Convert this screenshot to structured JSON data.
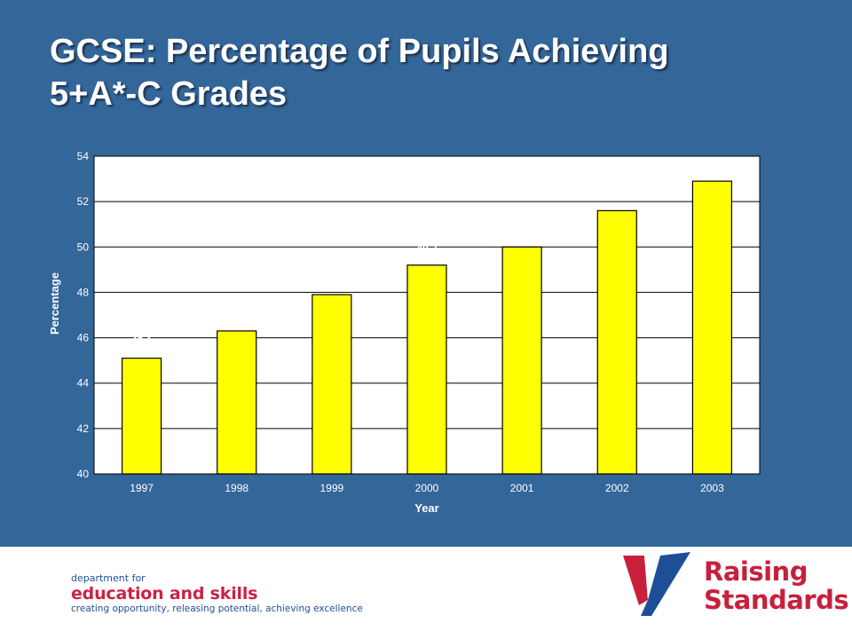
{
  "slide": {
    "title_line1": "GCSE: Percentage of Pupils Achieving",
    "title_line2": "5+A*-C Grades",
    "background_color": "#336699"
  },
  "chart_data": {
    "type": "bar",
    "categories": [
      "1997",
      "1998",
      "1999",
      "2000",
      "2001",
      "2002",
      "2003"
    ],
    "values": [
      45.1,
      46.3,
      47.9,
      49.2,
      50,
      51.6,
      52.9
    ],
    "data_labels": [
      "45.1",
      "46.3",
      "47.9",
      "49.2",
      "50",
      "51.6",
      "52.9"
    ],
    "xlabel": "Year",
    "ylabel": "Percentage",
    "ylim": [
      40,
      54
    ],
    "yticks": [
      40,
      42,
      44,
      46,
      48,
      50,
      52,
      54
    ],
    "grid": true,
    "bar_color": "#ffff00",
    "plot_background": "#ffffff"
  },
  "footer": {
    "dfes_line1": "department for",
    "dfes_line2": "education and skills",
    "dfes_line3": "creating opportunity, releasing potential, achieving excellence",
    "rs_line1": "Raising",
    "rs_line2": "Standards",
    "brand_blue": "#1f4e99",
    "brand_red": "#c8203c"
  }
}
